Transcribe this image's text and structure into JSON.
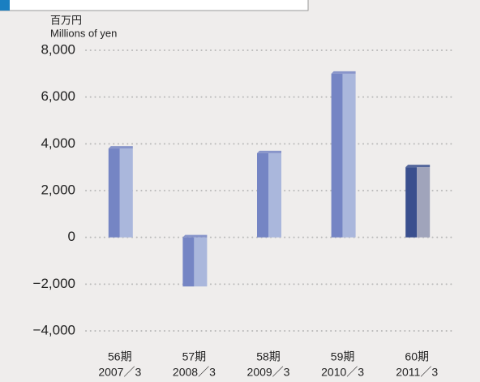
{
  "chart_data": {
    "type": "bar",
    "unit_label_ja": "百万円",
    "unit_label_en": "Millions of yen",
    "categories": [
      "56期",
      "57期",
      "58期",
      "59期",
      "60期"
    ],
    "periods": [
      "2007／3",
      "2008／3",
      "2009／3",
      "2010／3",
      "2011／3"
    ],
    "values": [
      3800,
      -2100,
      3600,
      7000,
      3000
    ],
    "colors": [
      "#7585c4",
      "#7585c4",
      "#7585c4",
      "#7585c4",
      "#3a4f8e"
    ],
    "side_colors": [
      "#aab7dc",
      "#aab7dc",
      "#aab7dc",
      "#aab7dc",
      "#a0a4bb"
    ],
    "ylim": [
      -4000,
      8000
    ],
    "yticks": [
      {
        "value": -4000,
        "label": "−4,000"
      },
      {
        "value": -2000,
        "label": "−2,000"
      },
      0,
      {
        "value": 2000,
        "label": "2,000"
      },
      {
        "value": 4000,
        "label": "4,000"
      },
      {
        "value": 6000,
        "label": "6,000"
      },
      {
        "value": 8000,
        "label": "8,000"
      }
    ],
    "grid": true
  }
}
